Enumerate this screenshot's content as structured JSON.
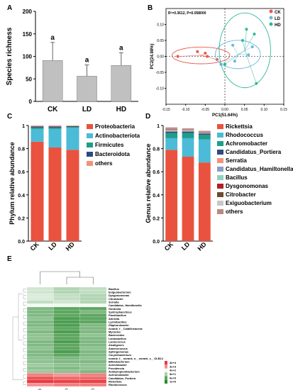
{
  "chart_data": [
    {
      "panel_label": "A",
      "type": "bar",
      "categories": [
        "CK",
        "LD",
        "HD"
      ],
      "values": [
        91,
        56,
        80
      ],
      "errors": [
        40,
        25,
        28
      ],
      "significance": [
        "a",
        "a",
        "a"
      ],
      "ylabel": "Species richness",
      "ylim": [
        0,
        200
      ],
      "yticks": [
        "0",
        "50",
        "100",
        "150",
        "200"
      ],
      "bar_color": "#c0c0c0",
      "grid": false
    },
    {
      "panel_label": "B",
      "type": "scatter",
      "annotation": "R²=0.3612, P=0.058000",
      "xlabel": "PC1(51.64%)",
      "ylabel": "PC2(24.98%)",
      "xlim": [
        -0.15,
        0.15
      ],
      "ylim": [
        -0.15,
        0.15
      ],
      "xticks": [
        "-0.15",
        "-0.10",
        "-0.05",
        "0.00",
        "0.05",
        "0.10",
        "0.15"
      ],
      "yticks": [
        "-0.10",
        "-0.05",
        "0.00",
        "0.05",
        "0.10"
      ],
      "legend": [
        "CK",
        "LD",
        "HD"
      ],
      "colors": [
        "#e8584a",
        "#6ab8dd",
        "#2fb79a"
      ],
      "series": [
        {
          "name": "CK",
          "points": [
            [
              -0.12,
              0.0
            ],
            [
              -0.07,
              0.015
            ],
            [
              -0.05,
              0.01
            ],
            [
              -0.045,
              0.0
            ],
            [
              -0.02,
              -0.01
            ]
          ]
        },
        {
          "name": "LD",
          "points": [
            [
              -0.01,
              -0.025
            ],
            [
              0.02,
              0.035
            ],
            [
              0.025,
              -0.015
            ],
            [
              0.06,
              0.005
            ],
            [
              0.07,
              0.03
            ]
          ]
        },
        {
          "name": "HD",
          "points": [
            [
              0.0,
              -0.025
            ],
            [
              0.045,
              0.05
            ],
            [
              0.055,
              0.085
            ],
            [
              0.075,
              0.07
            ],
            [
              0.08,
              -0.085
            ]
          ]
        }
      ]
    },
    {
      "panel_label": "C",
      "type": "bar",
      "stacked": true,
      "categories": [
        "CK",
        "LD",
        "HD"
      ],
      "ylabel": "Phylum relative abundance",
      "ylim": [
        0,
        1
      ],
      "yticks": [
        "0.0",
        "0.2",
        "0.4",
        "0.6",
        "0.8",
        "1"
      ],
      "series": [
        {
          "name": "Proteobacteria",
          "color": "#e9523e",
          "values": [
            0.86,
            0.81,
            0.79
          ]
        },
        {
          "name": "Actinobacteriota",
          "color": "#4bbbd7",
          "values": [
            0.11,
            0.16,
            0.19
          ]
        },
        {
          "name": "Firmicutes",
          "color": "#1e9e8a",
          "values": [
            0.012,
            0.012,
            0.008
          ]
        },
        {
          "name": "Bacteroidota",
          "color": "#2e4a80",
          "values": [
            0.01,
            0.01,
            0.006
          ]
        },
        {
          "name": "others",
          "color": "#f2927c",
          "values": [
            0.008,
            0.008,
            0.006
          ]
        }
      ]
    },
    {
      "panel_label": "D",
      "type": "bar",
      "stacked": true,
      "categories": [
        "CK",
        "LD",
        "HD"
      ],
      "ylabel": "Genus relative abundance",
      "ylim": [
        0,
        1
      ],
      "yticks": [
        "0.0",
        "0.2",
        "0.4",
        "0.6",
        "0.8",
        "1"
      ],
      "series": [
        {
          "name": "Rickettsia",
          "color": "#e9523e",
          "values": [
            0.79,
            0.73,
            0.68
          ]
        },
        {
          "name": "Rhodococcus",
          "color": "#4bbbd7",
          "values": [
            0.1,
            0.16,
            0.2
          ]
        },
        {
          "name": "Achromobacter",
          "color": "#1e9e8a",
          "values": [
            0.045,
            0.045,
            0.04
          ]
        },
        {
          "name": "Candidatus_Portiera",
          "color": "#2e4a80",
          "values": [
            0.012,
            0.012,
            0.01
          ]
        },
        {
          "name": "Serratia",
          "color": "#f2927c",
          "values": [
            0.008,
            0.006,
            0.005
          ]
        },
        {
          "name": "Candidatus_Hamiltonella",
          "color": "#8b9fc6",
          "values": [
            0.006,
            0.005,
            0.004
          ]
        },
        {
          "name": "Bacillus",
          "color": "#90d1c1",
          "values": [
            0.005,
            0.004,
            0.003
          ]
        },
        {
          "name": "Dysgonomonas",
          "color": "#b11f23",
          "values": [
            0.004,
            0.003,
            0.003
          ]
        },
        {
          "name": "Citrobacter",
          "color": "#6e4a2f",
          "values": [
            0.003,
            0.003,
            0.002
          ]
        },
        {
          "name": "Exiguobacterium",
          "color": "#c8c8c8",
          "values": [
            0.003,
            0.002,
            0.002
          ]
        },
        {
          "name": "others",
          "color": "#b88a80",
          "values": [
            0.008,
            0.006,
            0.005
          ]
        }
      ]
    },
    {
      "panel_label": "E",
      "type": "heatmap",
      "columns": [
        "CK",
        "LD",
        "HD"
      ],
      "rows": [
        "Bacillus",
        "Exiguobacterium",
        "Dysgonomonas",
        "Citrobacter",
        "Serratia",
        "Candidatus_Hamiltonella",
        "Gordonia",
        "Syntrophaceticus",
        "Paenibacillus",
        "Ahniella",
        "Lysinibacillus",
        "Diaphorobacter",
        "norank_f__Caldilineaceae",
        "Myroides",
        "Bacteroides",
        "Lactobacillus",
        "Lactococcus",
        "Alcaligenes",
        "Anaerococcus",
        "Sphingomonas",
        "Corynebacterium",
        "norank_f__norank_o__norank_c__OLB14",
        "Bifidobacterium",
        "Acinetobacter",
        "Providencia",
        "Acidipropionibacterium",
        "Achromobacter",
        "Candidatus_Portiera",
        "Rickettsia",
        "Rhodococcus"
      ],
      "values": [
        [
          0.0002,
          5e-05,
          0.0001
        ],
        [
          0.0002,
          5e-05,
          0.0001
        ],
        [
          0.0003,
          0.0001,
          5e-05
        ],
        [
          0.0003,
          0.0001,
          5e-05
        ],
        [
          0.0001,
          0.0002,
          5e-05
        ],
        [
          0.001,
          0.0008,
          0.001
        ],
        [
          5e-06,
          1e-06,
          1e-06
        ],
        [
          5e-06,
          1e-06,
          5e-06
        ],
        [
          5e-06,
          1e-06,
          1e-06
        ],
        [
          1e-05,
          5e-07,
          1e-06
        ],
        [
          5e-06,
          5e-07,
          1e-06
        ],
        [
          5e-06,
          5e-07,
          5e-06
        ],
        [
          1e-05,
          1e-06,
          5e-06
        ],
        [
          5e-06,
          5e-07,
          5e-06
        ],
        [
          1e-05,
          1e-06,
          1e-05
        ],
        [
          1e-05,
          1e-06,
          5e-06
        ],
        [
          5e-06,
          5e-07,
          5e-06
        ],
        [
          5e-06,
          1e-06,
          5e-06
        ],
        [
          1e-05,
          1e-06,
          1e-05
        ],
        [
          5e-06,
          5e-07,
          5e-06
        ],
        [
          5e-06,
          1e-06,
          5e-06
        ],
        [
          1e-05,
          5e-06,
          1e-05
        ],
        [
          1e-05,
          5e-06,
          5e-06
        ],
        [
          2e-05,
          1e-05,
          1e-05
        ],
        [
          1e-05,
          5e-06,
          1e-05
        ],
        [
          2e-05,
          1e-05,
          5e-06
        ],
        [
          0.1,
          0.05,
          0.1
        ],
        [
          0.4,
          0.2,
          0.2
        ],
        [
          0.9,
          0.7,
          0.75
        ],
        [
          0.05,
          0.1,
          0.1
        ]
      ],
      "legend_labels": [
        "3e+4",
        "3e+3",
        "4e+2",
        "5e+1",
        "6e+0",
        "1e+0"
      ],
      "color_scale": [
        "#2a8a2e",
        "#ffffff",
        "#e8383b"
      ]
    }
  ]
}
